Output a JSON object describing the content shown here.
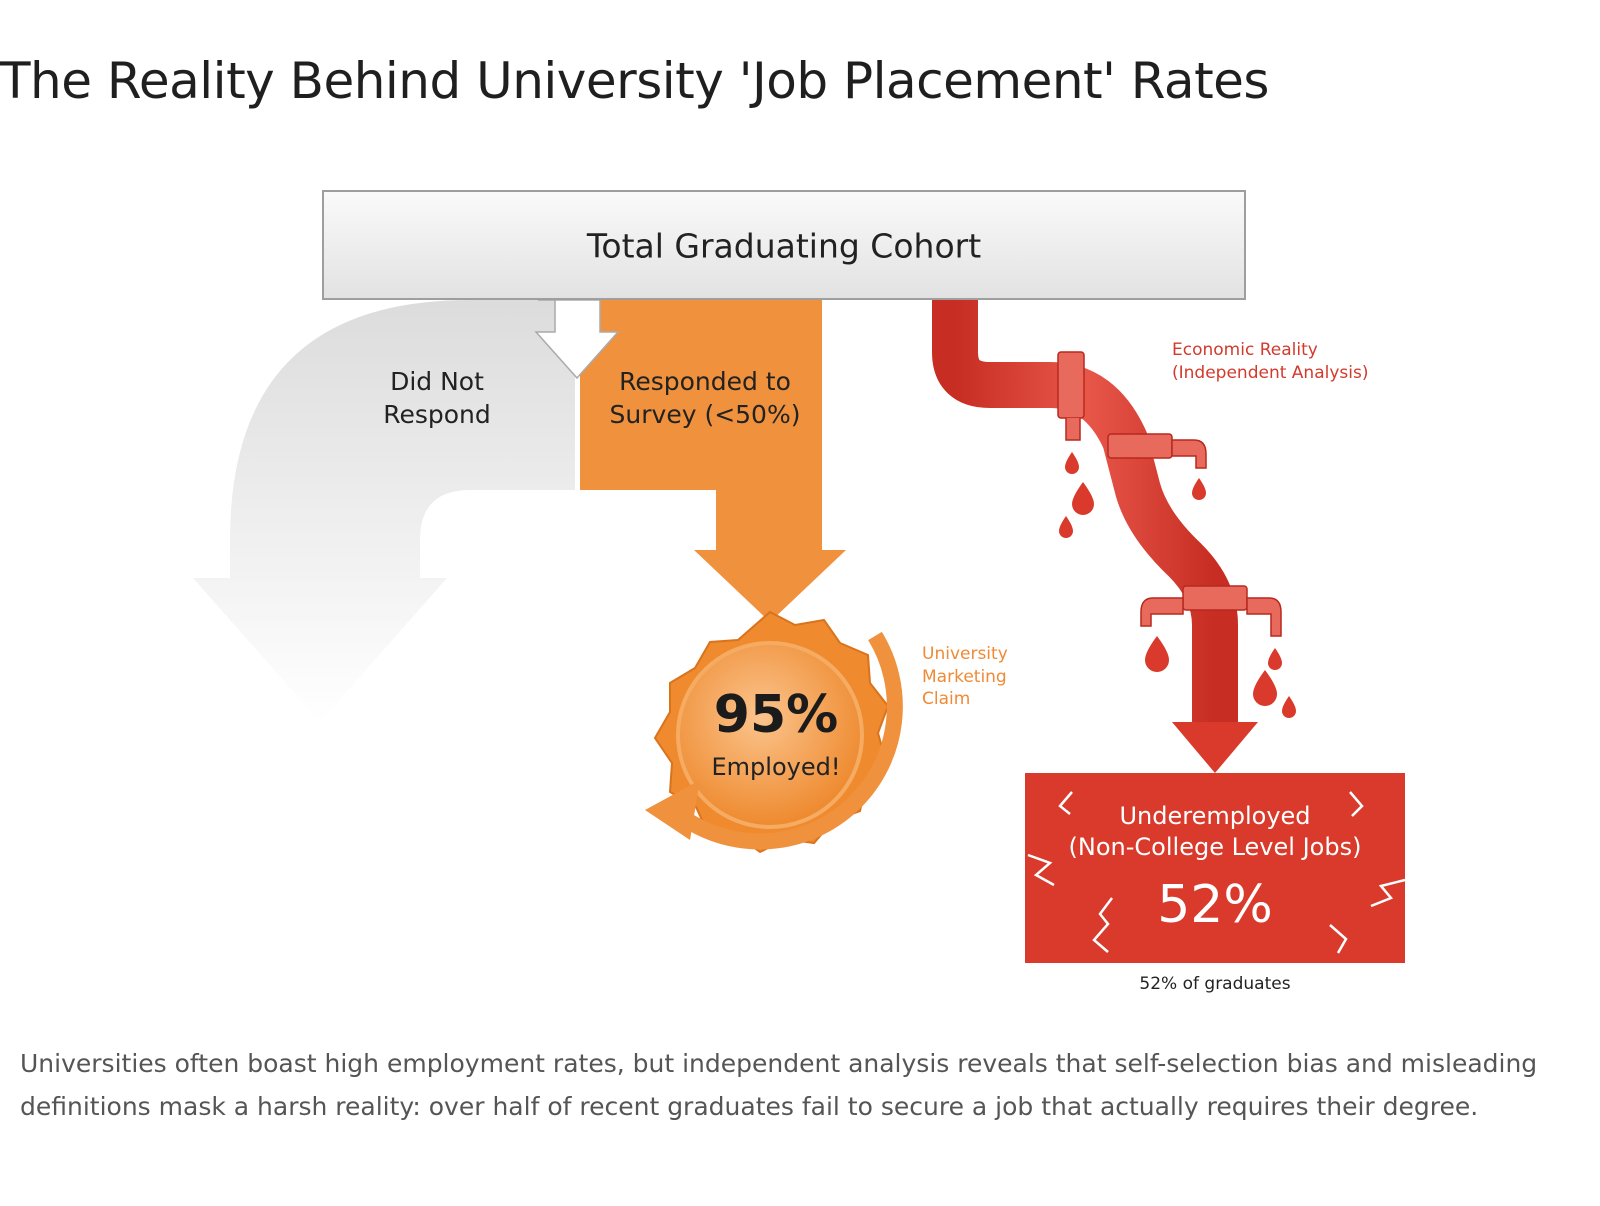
{
  "header": {
    "title": "The Reality Behind University 'Job Placement' Rates"
  },
  "diagram": {
    "cohort": "Total Graduating Cohort",
    "did_not_respond": [
      "Did Not",
      "Respond"
    ],
    "responded": [
      "Responded to",
      "Survey (<50%)"
    ],
    "badge": {
      "value": "95%",
      "label": "Employed!"
    },
    "marketing_note": [
      "University",
      "Marketing",
      "Claim"
    ],
    "reality_note": [
      "Economic Reality",
      "(Independent Analysis)"
    ],
    "outcome": {
      "title": [
        "Underemployed",
        "(Non-College Level Jobs)"
      ],
      "value": "52%"
    },
    "outcome_caption": "52% of graduates"
  },
  "caption": "Universities often boast high employment rates, but independent analysis reveals that self-selection bias and misleading definitions mask a harsh reality: over half of recent graduates fail to secure a job that actually requires their degree."
}
